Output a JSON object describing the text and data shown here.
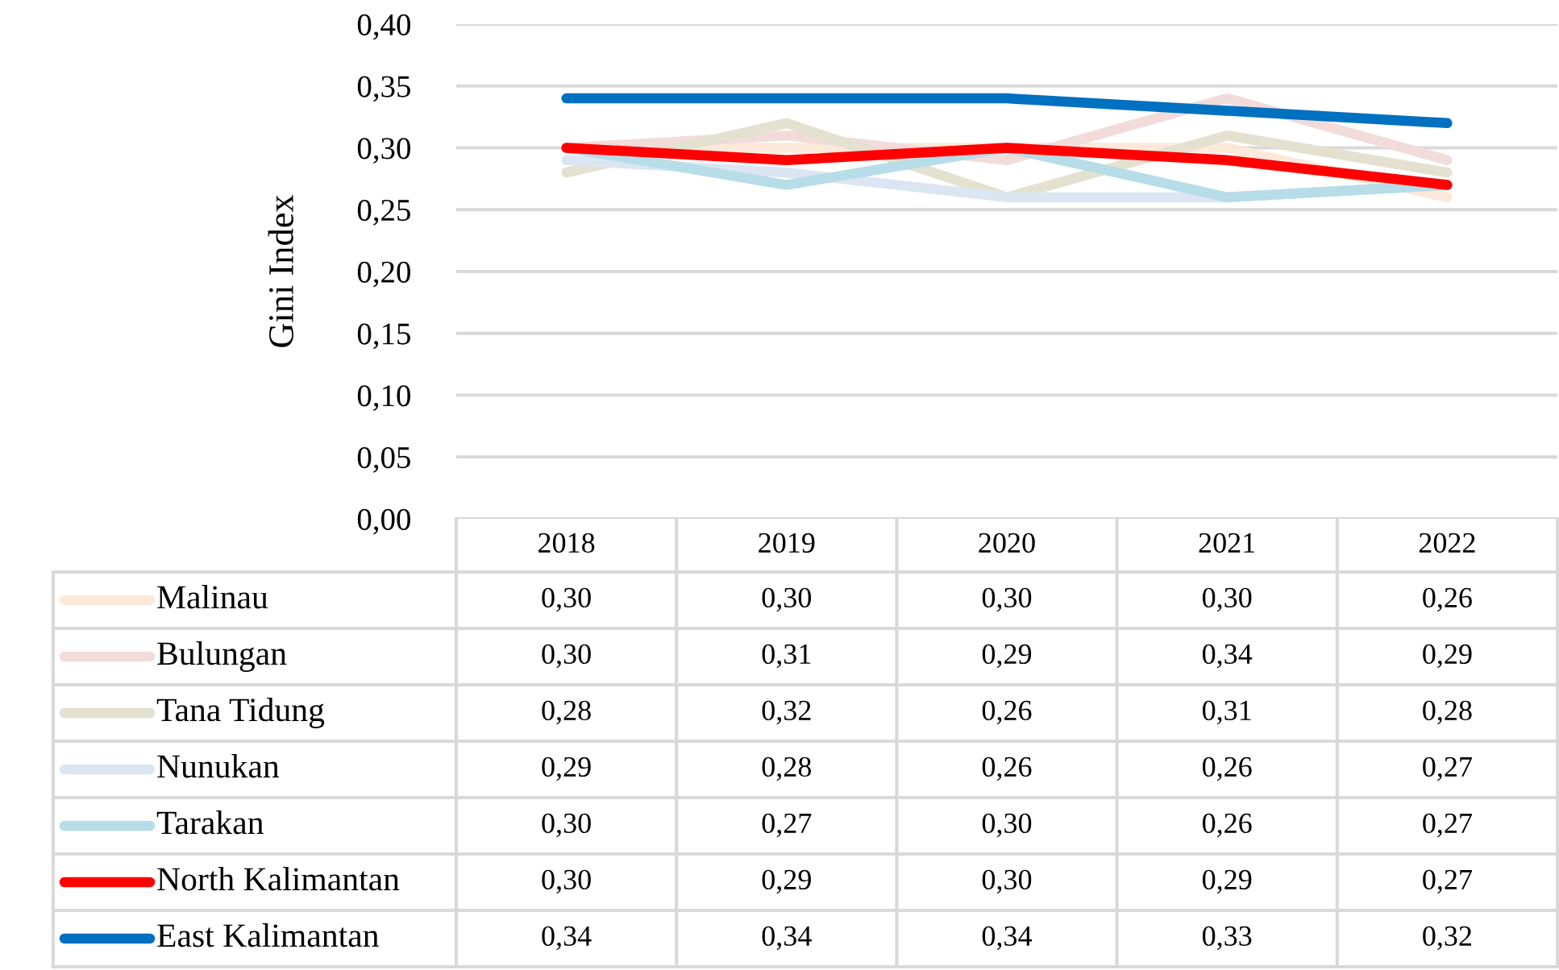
{
  "chart_data": {
    "type": "line",
    "ylabel": "Gini Index",
    "categories": [
      "2018",
      "2019",
      "2020",
      "2021",
      "2022"
    ],
    "ylim": [
      0,
      0.4
    ],
    "yticks": [
      {
        "value": 0,
        "label": "0,00"
      },
      {
        "value": 0.05,
        "label": "0,05"
      },
      {
        "value": 0.1,
        "label": "0,10"
      },
      {
        "value": 0.15,
        "label": "0,15"
      },
      {
        "value": 0.2,
        "label": "0,20"
      },
      {
        "value": 0.25,
        "label": "0,25"
      },
      {
        "value": 0.3,
        "label": "0,30"
      },
      {
        "value": 0.35,
        "label": "0,35"
      },
      {
        "value": 0.4,
        "label": "0,40"
      }
    ],
    "grid": "y",
    "legend": "bottom",
    "marker": "none",
    "line_style": "solid",
    "series": [
      {
        "name": "Malinau",
        "color": "#fde9d9",
        "values": [
          0.3,
          0.3,
          0.3,
          0.3,
          0.26
        ],
        "value_labels": [
          "0,30",
          "0,30",
          "0,30",
          "0,30",
          "0,26"
        ]
      },
      {
        "name": "Bulungan",
        "color": "#f2dcdb",
        "values": [
          0.3,
          0.31,
          0.29,
          0.34,
          0.29
        ],
        "value_labels": [
          "0,30",
          "0,31",
          "0,29",
          "0,34",
          "0,29"
        ]
      },
      {
        "name": "Tana Tidung",
        "color": "#e4e1d0",
        "values": [
          0.28,
          0.32,
          0.26,
          0.31,
          0.28
        ],
        "value_labels": [
          "0,28",
          "0,32",
          "0,26",
          "0,31",
          "0,28"
        ]
      },
      {
        "name": "Nunukan",
        "color": "#dce6f2",
        "values": [
          0.29,
          0.28,
          0.26,
          0.26,
          0.27
        ],
        "value_labels": [
          "0,29",
          "0,28",
          "0,26",
          "0,26",
          "0,27"
        ]
      },
      {
        "name": "Tarakan",
        "color": "#b7dde8",
        "values": [
          0.3,
          0.27,
          0.3,
          0.26,
          0.27
        ],
        "value_labels": [
          "0,30",
          "0,27",
          "0,30",
          "0,26",
          "0,27"
        ]
      },
      {
        "name": "North Kalimantan",
        "color": "#ff0000",
        "values": [
          0.3,
          0.29,
          0.3,
          0.29,
          0.27
        ],
        "value_labels": [
          "0,30",
          "0,29",
          "0,30",
          "0,29",
          "0,27"
        ]
      },
      {
        "name": "East Kalimantan",
        "color": "#0070c0",
        "values": [
          0.34,
          0.34,
          0.34,
          0.33,
          0.32
        ],
        "value_labels": [
          "0,34",
          "0,34",
          "0,34",
          "0,33",
          "0,32"
        ]
      }
    ]
  }
}
